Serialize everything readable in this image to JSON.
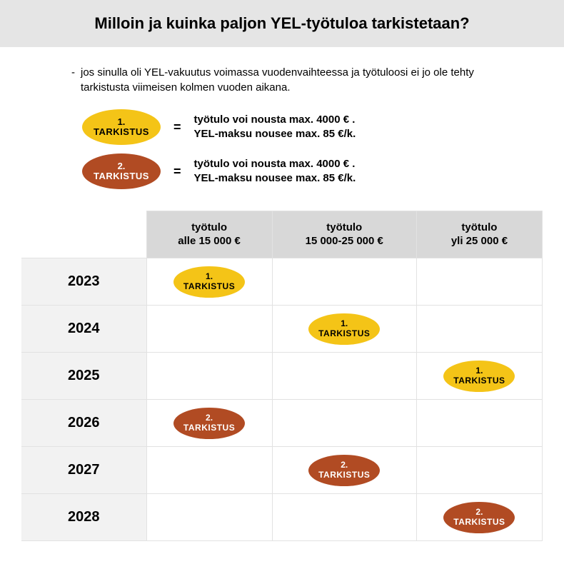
{
  "colors": {
    "header_bg": "#e5e5e5",
    "yellow": "#f4c417",
    "brown": "#b14b23",
    "yellow_text": "#000000",
    "brown_text": "#ffffff",
    "grid_border": "#e2e2e2",
    "col_header_bg": "#d8d8d8",
    "row_header_bg": "#f2f2f2"
  },
  "title": "Milloin ja kuinka paljon YEL-työtuloa tarkistetaan?",
  "intro": {
    "dash": "-",
    "text": "jos sinulla oli YEL-vakuutus voimassa vuodenvaihteessa ja työtuloosi ei jo ole tehty tarkistusta viimeisen kolmen vuoden aikana."
  },
  "legend": [
    {
      "num": "1.",
      "label": "TARKISTUS",
      "bg": "#f4c417",
      "fg": "#000000",
      "line1": "työtulo voi nousta max. 4000 € .",
      "line2": "YEL-maksu nousee max. 85 €/k."
    },
    {
      "num": "2.",
      "label": "TARKISTUS",
      "bg": "#b14b23",
      "fg": "#ffffff",
      "line1": "työtulo voi nousta max. 4000 € .",
      "line2": "YEL-maksu nousee max. 85 €/k."
    }
  ],
  "eq": "=",
  "table": {
    "columns": [
      {
        "line1": "työtulo",
        "line2": "alle 15 000 €"
      },
      {
        "line1": "työtulo",
        "line2": "15 000-25 000 €"
      },
      {
        "line1": "työtulo",
        "line2": "yli 25 000 €"
      }
    ],
    "rows": [
      {
        "year": "2023",
        "cells": [
          {
            "num": "1.",
            "label": "TARKISTUS",
            "bg": "#f4c417",
            "fg": "#000000"
          },
          null,
          null
        ]
      },
      {
        "year": "2024",
        "cells": [
          null,
          {
            "num": "1.",
            "label": "TARKISTUS",
            "bg": "#f4c417",
            "fg": "#000000"
          },
          null
        ]
      },
      {
        "year": "2025",
        "cells": [
          null,
          null,
          {
            "num": "1.",
            "label": "TARKISTUS",
            "bg": "#f4c417",
            "fg": "#000000"
          }
        ]
      },
      {
        "year": "2026",
        "cells": [
          {
            "num": "2.",
            "label": "TARKISTUS",
            "bg": "#b14b23",
            "fg": "#ffffff"
          },
          null,
          null
        ]
      },
      {
        "year": "2027",
        "cells": [
          null,
          {
            "num": "2.",
            "label": "TARKISTUS",
            "bg": "#b14b23",
            "fg": "#ffffff"
          },
          null
        ]
      },
      {
        "year": "2028",
        "cells": [
          null,
          null,
          {
            "num": "2.",
            "label": "TARKISTUS",
            "bg": "#b14b23",
            "fg": "#ffffff"
          }
        ]
      }
    ]
  }
}
